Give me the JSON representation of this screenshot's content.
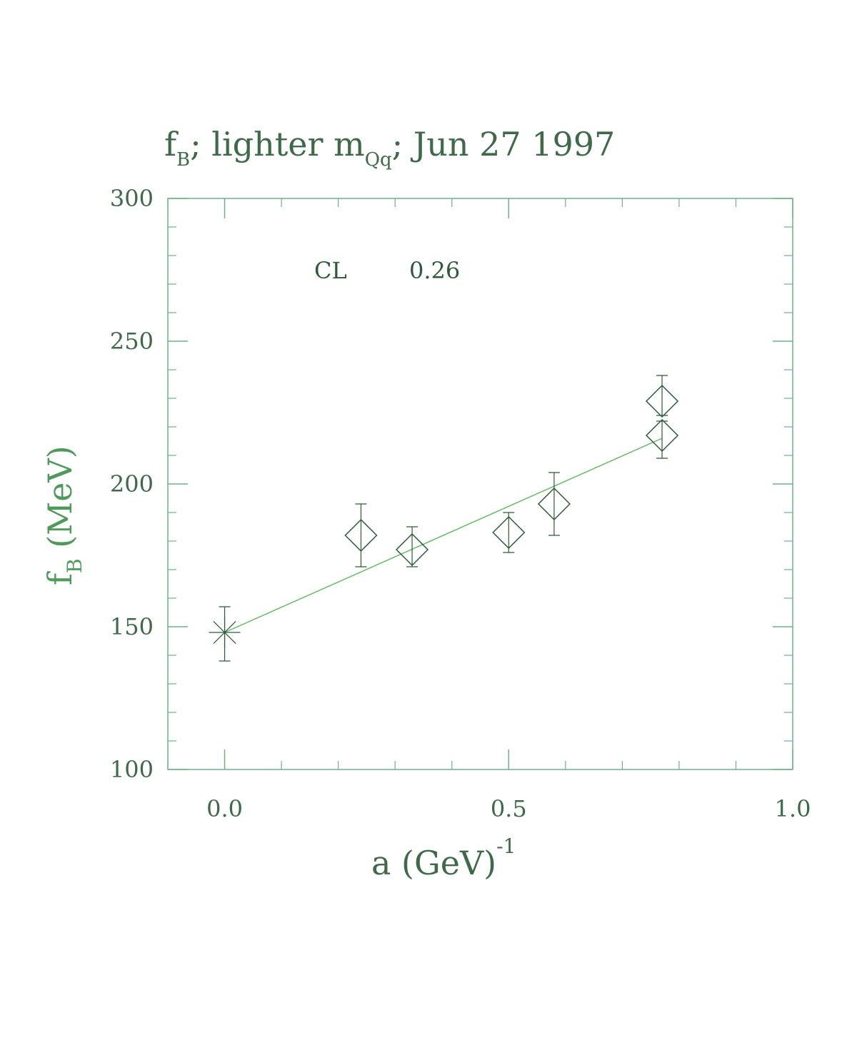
{
  "chart_data": {
    "type": "scatter",
    "title": {
      "base": "f",
      "base_sub": "B",
      "middle": "; lighter m",
      "middle_sub": "Qq",
      "tail": "; Jun 27 1997"
    },
    "xlabel": {
      "text": "a (GeV)",
      "sup": "-1"
    },
    "ylabel": {
      "base": "f",
      "sub": "B",
      "tail": " (MeV)"
    },
    "xlim": [
      -0.1,
      1.0
    ],
    "ylim": [
      100,
      300
    ],
    "x_ticks": [
      0.0,
      0.5,
      1.0
    ],
    "x_tick_labels": [
      "0.0",
      "0.5",
      "1.0"
    ],
    "y_ticks": [
      100,
      150,
      200,
      250,
      300
    ],
    "y_tick_labels": [
      "100",
      "150",
      "200",
      "250",
      "300"
    ],
    "annotation": {
      "label": "CL",
      "value": "0.26"
    },
    "series": [
      {
        "marker": "diamond",
        "points": [
          {
            "x": 0.24,
            "y": 182,
            "yerr_low": 171,
            "yerr_high": 193
          },
          {
            "x": 0.33,
            "y": 177,
            "yerr_low": 171,
            "yerr_high": 185
          },
          {
            "x": 0.5,
            "y": 183,
            "yerr_low": 176,
            "yerr_high": 190
          },
          {
            "x": 0.58,
            "y": 193,
            "yerr_low": 182,
            "yerr_high": 204
          },
          {
            "x": 0.77,
            "y": 229,
            "yerr_low": 224,
            "yerr_high": 238
          },
          {
            "x": 0.77,
            "y": 217,
            "yerr_low": 209,
            "yerr_high": 222
          }
        ]
      },
      {
        "marker": "burst",
        "points": [
          {
            "x": 0.0,
            "y": 148,
            "yerr_low": 138,
            "yerr_high": 157
          }
        ]
      }
    ],
    "fit_line": {
      "x": [
        0.0,
        0.77
      ],
      "y": [
        148,
        216
      ]
    },
    "colors": {
      "axis": "#6fb08a",
      "marker": "#2e5a3a",
      "fit": "#66bb66",
      "text": "#3f7a50",
      "ylabel": "#4f9a5a"
    }
  }
}
